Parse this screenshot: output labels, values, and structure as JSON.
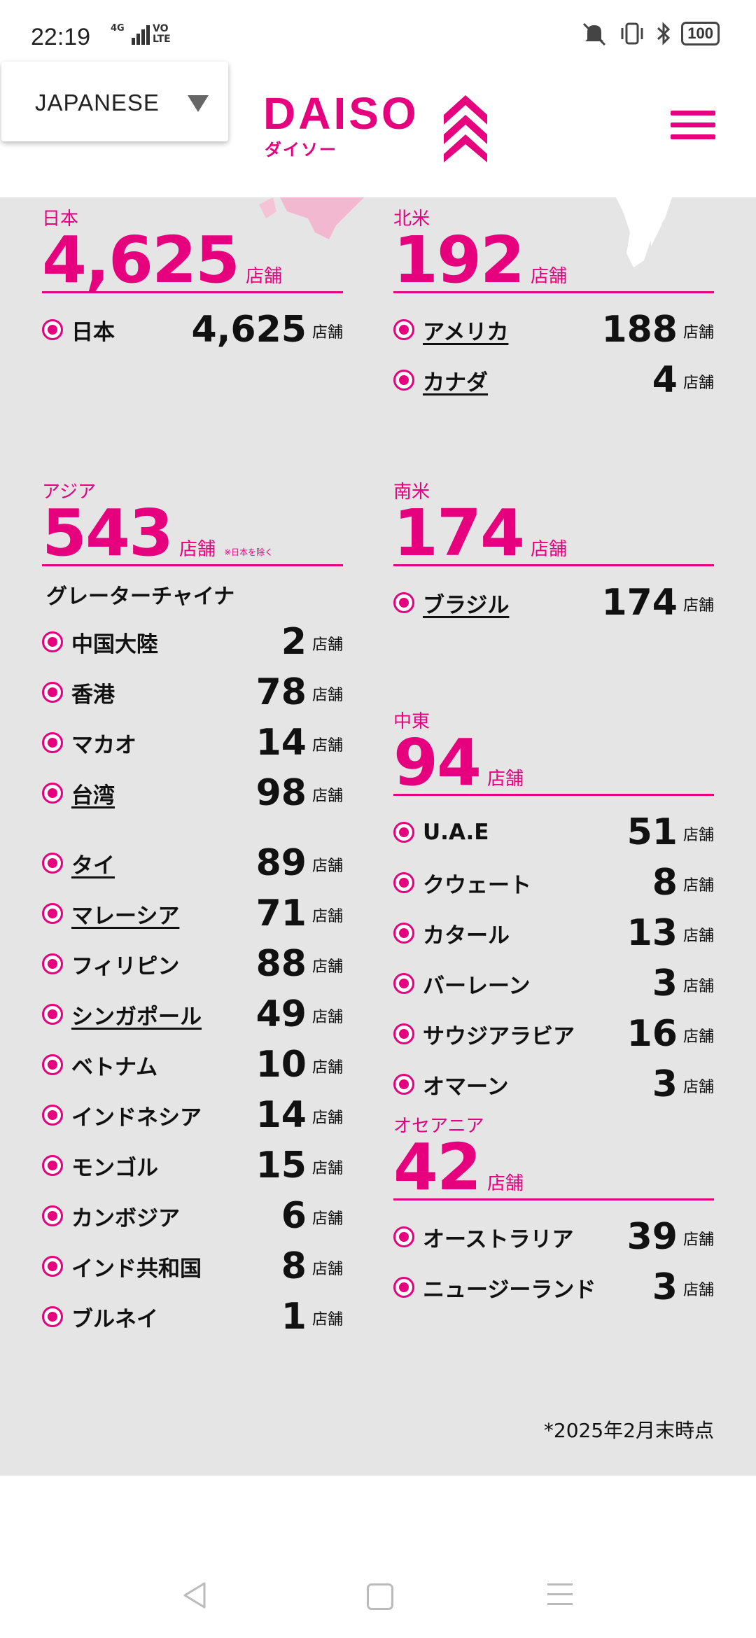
{
  "status_bar": {
    "time": "22:19",
    "network": "4G",
    "volte": "VO\nLTE",
    "battery": "100"
  },
  "header": {
    "language": "JAPANESE",
    "logo_text": "DAISO",
    "logo_kana": "ダイソー",
    "brand_color": "#e6007e"
  },
  "regions_left": [
    {
      "name": "日本",
      "total": "4,625",
      "unit": "店舗",
      "note": "",
      "groups": [
        {
          "title": "",
          "rows": [
            {
              "country": "日本",
              "count": "4,625",
              "link": false
            }
          ]
        }
      ]
    },
    {
      "name": "アジア",
      "total": "543",
      "unit": "店舗",
      "note": "※日本を除く",
      "groups": [
        {
          "title": "グレーターチャイナ",
          "rows": [
            {
              "country": "中国大陸",
              "count": "2",
              "link": false
            },
            {
              "country": "香港",
              "count": "78",
              "link": false
            },
            {
              "country": "マカオ",
              "count": "14",
              "link": false
            },
            {
              "country": "台湾",
              "count": "98",
              "link": true
            }
          ]
        },
        {
          "title": "",
          "rows": [
            {
              "country": "タイ",
              "count": "89",
              "link": true
            },
            {
              "country": "マレーシア",
              "count": "71",
              "link": true
            },
            {
              "country": "フィリピン",
              "count": "88",
              "link": false
            },
            {
              "country": "シンガポール",
              "count": "49",
              "link": true
            },
            {
              "country": "ベトナム",
              "count": "10",
              "link": false
            },
            {
              "country": "インドネシア",
              "count": "14",
              "link": false
            },
            {
              "country": "モンゴル",
              "count": "15",
              "link": false
            },
            {
              "country": "カンボジア",
              "count": "6",
              "link": false
            },
            {
              "country": "インド共和国",
              "count": "8",
              "link": false
            },
            {
              "country": "ブルネイ",
              "count": "1",
              "link": false
            }
          ]
        }
      ]
    }
  ],
  "regions_right": [
    {
      "name": "北米",
      "total": "192",
      "unit": "店舗",
      "note": "",
      "groups": [
        {
          "title": "",
          "rows": [
            {
              "country": "アメリカ",
              "count": "188",
              "link": true
            },
            {
              "country": "カナダ",
              "count": "4",
              "link": true
            }
          ]
        }
      ]
    },
    {
      "name": "南米",
      "total": "174",
      "unit": "店舗",
      "note": "",
      "groups": [
        {
          "title": "",
          "rows": [
            {
              "country": "ブラジル",
              "count": "174",
              "link": true
            }
          ]
        }
      ]
    },
    {
      "name": "中東",
      "total": "94",
      "unit": "店舗",
      "note": "",
      "groups": [
        {
          "title": "",
          "rows": [
            {
              "country": "U.A.E",
              "count": "51",
              "link": false
            },
            {
              "country": "クウェート",
              "count": "8",
              "link": false
            },
            {
              "country": "カタール",
              "count": "13",
              "link": false
            },
            {
              "country": "バーレーン",
              "count": "3",
              "link": false
            },
            {
              "country": "サウジアラビア",
              "count": "16",
              "link": false
            },
            {
              "country": "オマーン",
              "count": "3",
              "link": false
            }
          ]
        }
      ]
    },
    {
      "name": "オセアニア",
      "total": "42",
      "unit": "店舗",
      "note": "",
      "groups": [
        {
          "title": "",
          "rows": [
            {
              "country": "オーストラリア",
              "count": "39",
              "link": false
            },
            {
              "country": "ニュージーランド",
              "count": "3",
              "link": false
            }
          ]
        }
      ]
    }
  ],
  "footnote": "*2025年2月末時点"
}
